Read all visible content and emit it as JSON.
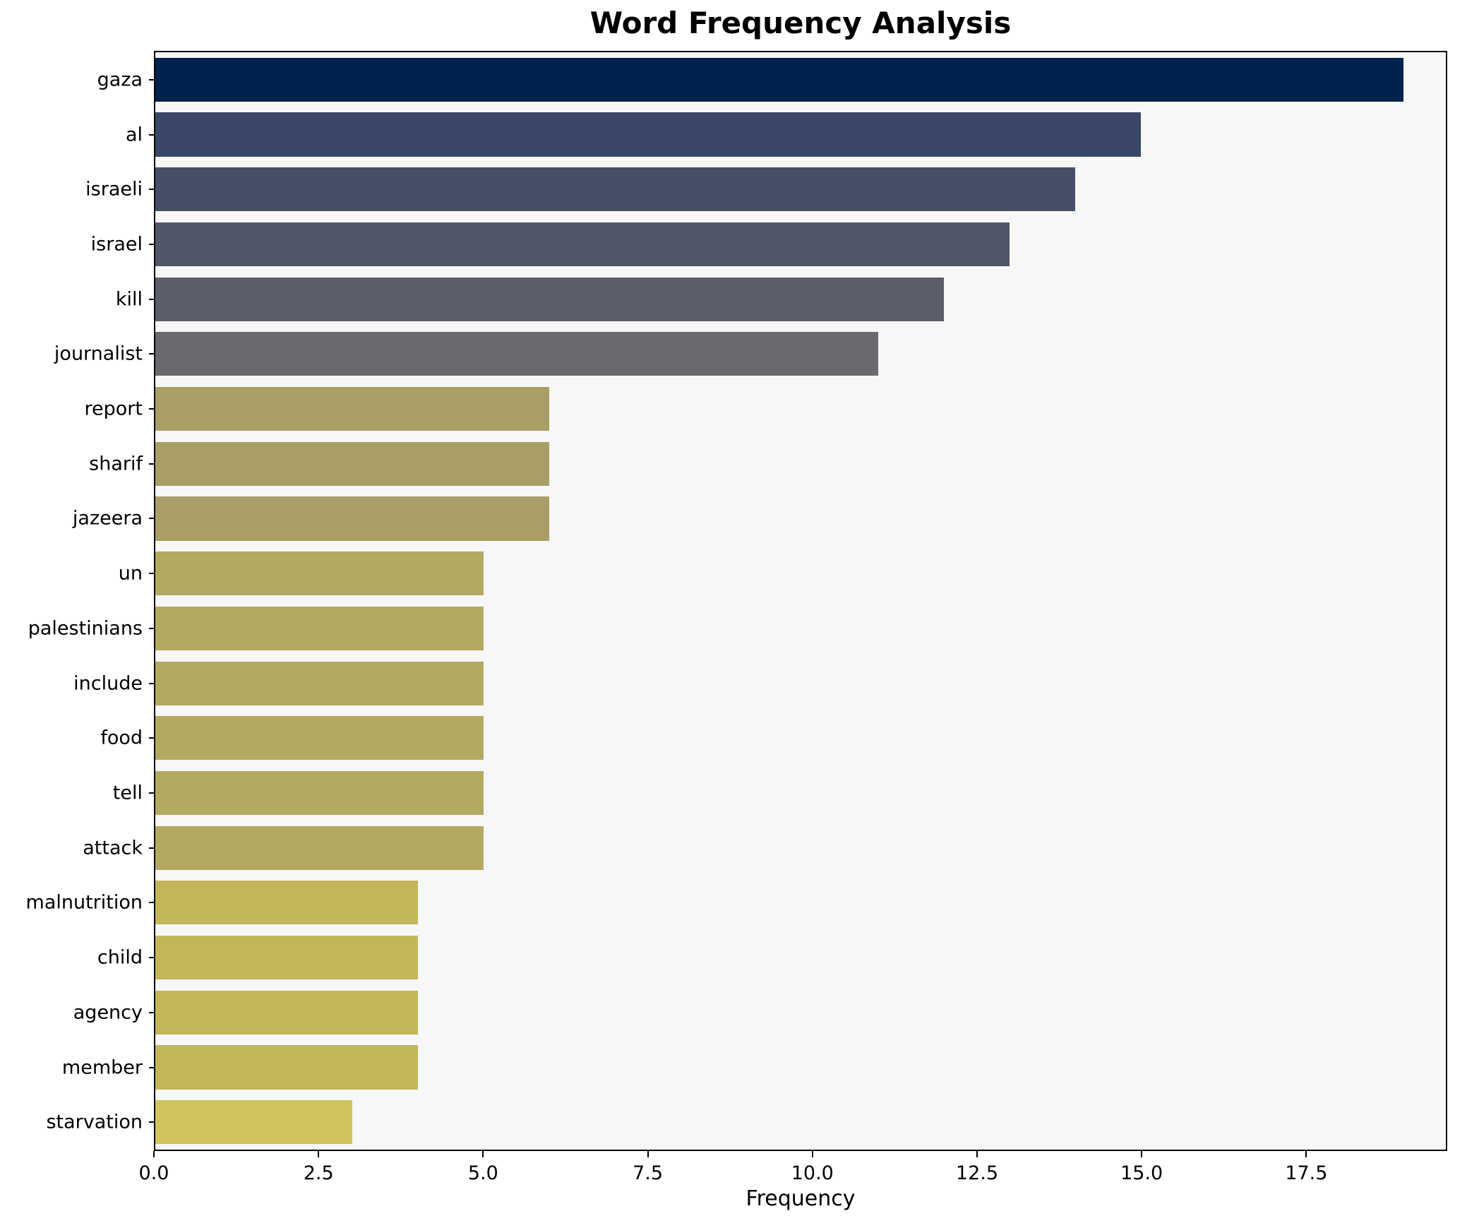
{
  "chart_data": {
    "type": "bar",
    "orientation": "horizontal",
    "title": "Word Frequency Analysis",
    "xlabel": "Frequency",
    "ylabel": "",
    "categories": [
      "gaza",
      "al",
      "israeli",
      "israel",
      "kill",
      "journalist",
      "report",
      "sharif",
      "jazeera",
      "un",
      "palestinians",
      "include",
      "food",
      "tell",
      "attack",
      "malnutrition",
      "child",
      "agency",
      "member",
      "starvation"
    ],
    "values": [
      19,
      15,
      14,
      13,
      12,
      11,
      6,
      6,
      6,
      5,
      5,
      5,
      5,
      5,
      5,
      4,
      4,
      4,
      4,
      3
    ],
    "bar_colors": [
      "#00224e",
      "#3a4769",
      "#455067",
      "#505768",
      "#5b5e69",
      "#69696e",
      "#a99f66",
      "#a99f66",
      "#a99f66",
      "#b3a961",
      "#b3a961",
      "#b3a961",
      "#b3a961",
      "#b3a961",
      "#b3a961",
      "#c2b65b",
      "#c2b65b",
      "#c2b65b",
      "#c2b65b",
      "#d1c35d"
    ],
    "xlim": [
      0,
      19.64
    ],
    "xticks": [
      0.0,
      2.5,
      5.0,
      7.5,
      10.0,
      12.5,
      15.0,
      17.5
    ],
    "xtick_labels": [
      "0.0",
      "2.5",
      "5.0",
      "7.5",
      "10.0",
      "12.5",
      "15.0",
      "17.5"
    ],
    "grid": false,
    "legend": false,
    "plot_background": "#f7f7f7",
    "figure_background": "#ffffff",
    "axis_color": "#000000"
  }
}
